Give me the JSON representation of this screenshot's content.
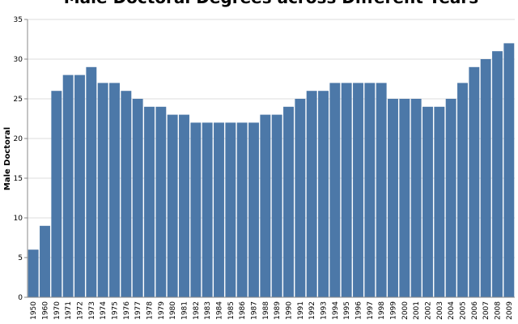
{
  "chart_data": {
    "type": "bar",
    "title": "Male Doctoral Degrees across Different Years",
    "y_label": "Male Doctoral",
    "categories": [
      "1950",
      "1960",
      "1970",
      "1971",
      "1972",
      "1973",
      "1974",
      "1975",
      "1976",
      "1977",
      "1978",
      "1979",
      "1980",
      "1981",
      "1982",
      "1983",
      "1984",
      "1985",
      "1986",
      "1987",
      "1988",
      "1989",
      "1990",
      "1991",
      "1992",
      "1993",
      "1994",
      "1995",
      "1996",
      "1997",
      "1998",
      "1999",
      "2000",
      "2001",
      "2002",
      "2003",
      "2004",
      "2005",
      "2006",
      "2007",
      "2008",
      "2009"
    ],
    "values": [
      6,
      9,
      26,
      28,
      28,
      29,
      27,
      27,
      26,
      25,
      24,
      24,
      23,
      23,
      22,
      22,
      22,
      22,
      22,
      22,
      23,
      23,
      24,
      25,
      26,
      26,
      27,
      27,
      27,
      27,
      27,
      25,
      25,
      25,
      24,
      24,
      25,
      27,
      29,
      30,
      31,
      32
    ],
    "color": "#4c78a8",
    "ylim": [
      0,
      35
    ],
    "yticks": [
      0,
      5,
      10,
      15,
      20,
      25,
      30,
      35
    ],
    "grid": true
  }
}
